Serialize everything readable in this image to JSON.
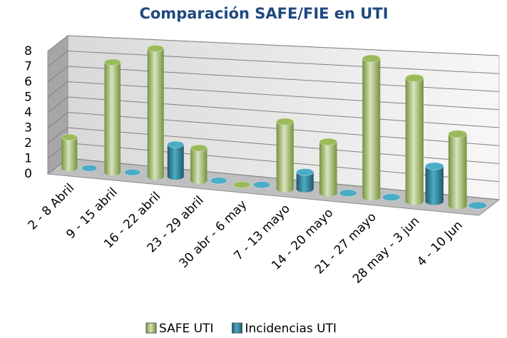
{
  "chart_data": {
    "type": "bar",
    "title": "Comparación SAFE/FIE en UTI",
    "categories": [
      "2 - 8 Abril",
      "9 - 15 abril",
      "16 - 22 abril",
      "23 - 29 abril",
      "30 abr - 6 may",
      "7 - 13 mayo",
      "14 - 20 mayo",
      "21 - 27 mayo",
      "28 may - 3 jun",
      "4 - 10 Jun"
    ],
    "series": [
      {
        "name": "SAFE UTI",
        "color": "#9bbb59",
        "values": [
          2,
          7,
          8,
          2,
          0,
          4,
          3,
          8,
          7,
          4
        ]
      },
      {
        "name": "Incidencias UTI",
        "color": "#4bacc6",
        "values": [
          0,
          0,
          2,
          0,
          0,
          1,
          0,
          0,
          2,
          0
        ]
      }
    ],
    "ylim": [
      0,
      8
    ],
    "yticks": [
      0,
      1,
      2,
      3,
      4,
      5,
      6,
      7,
      8
    ],
    "grid": true,
    "legend": "bottom"
  }
}
